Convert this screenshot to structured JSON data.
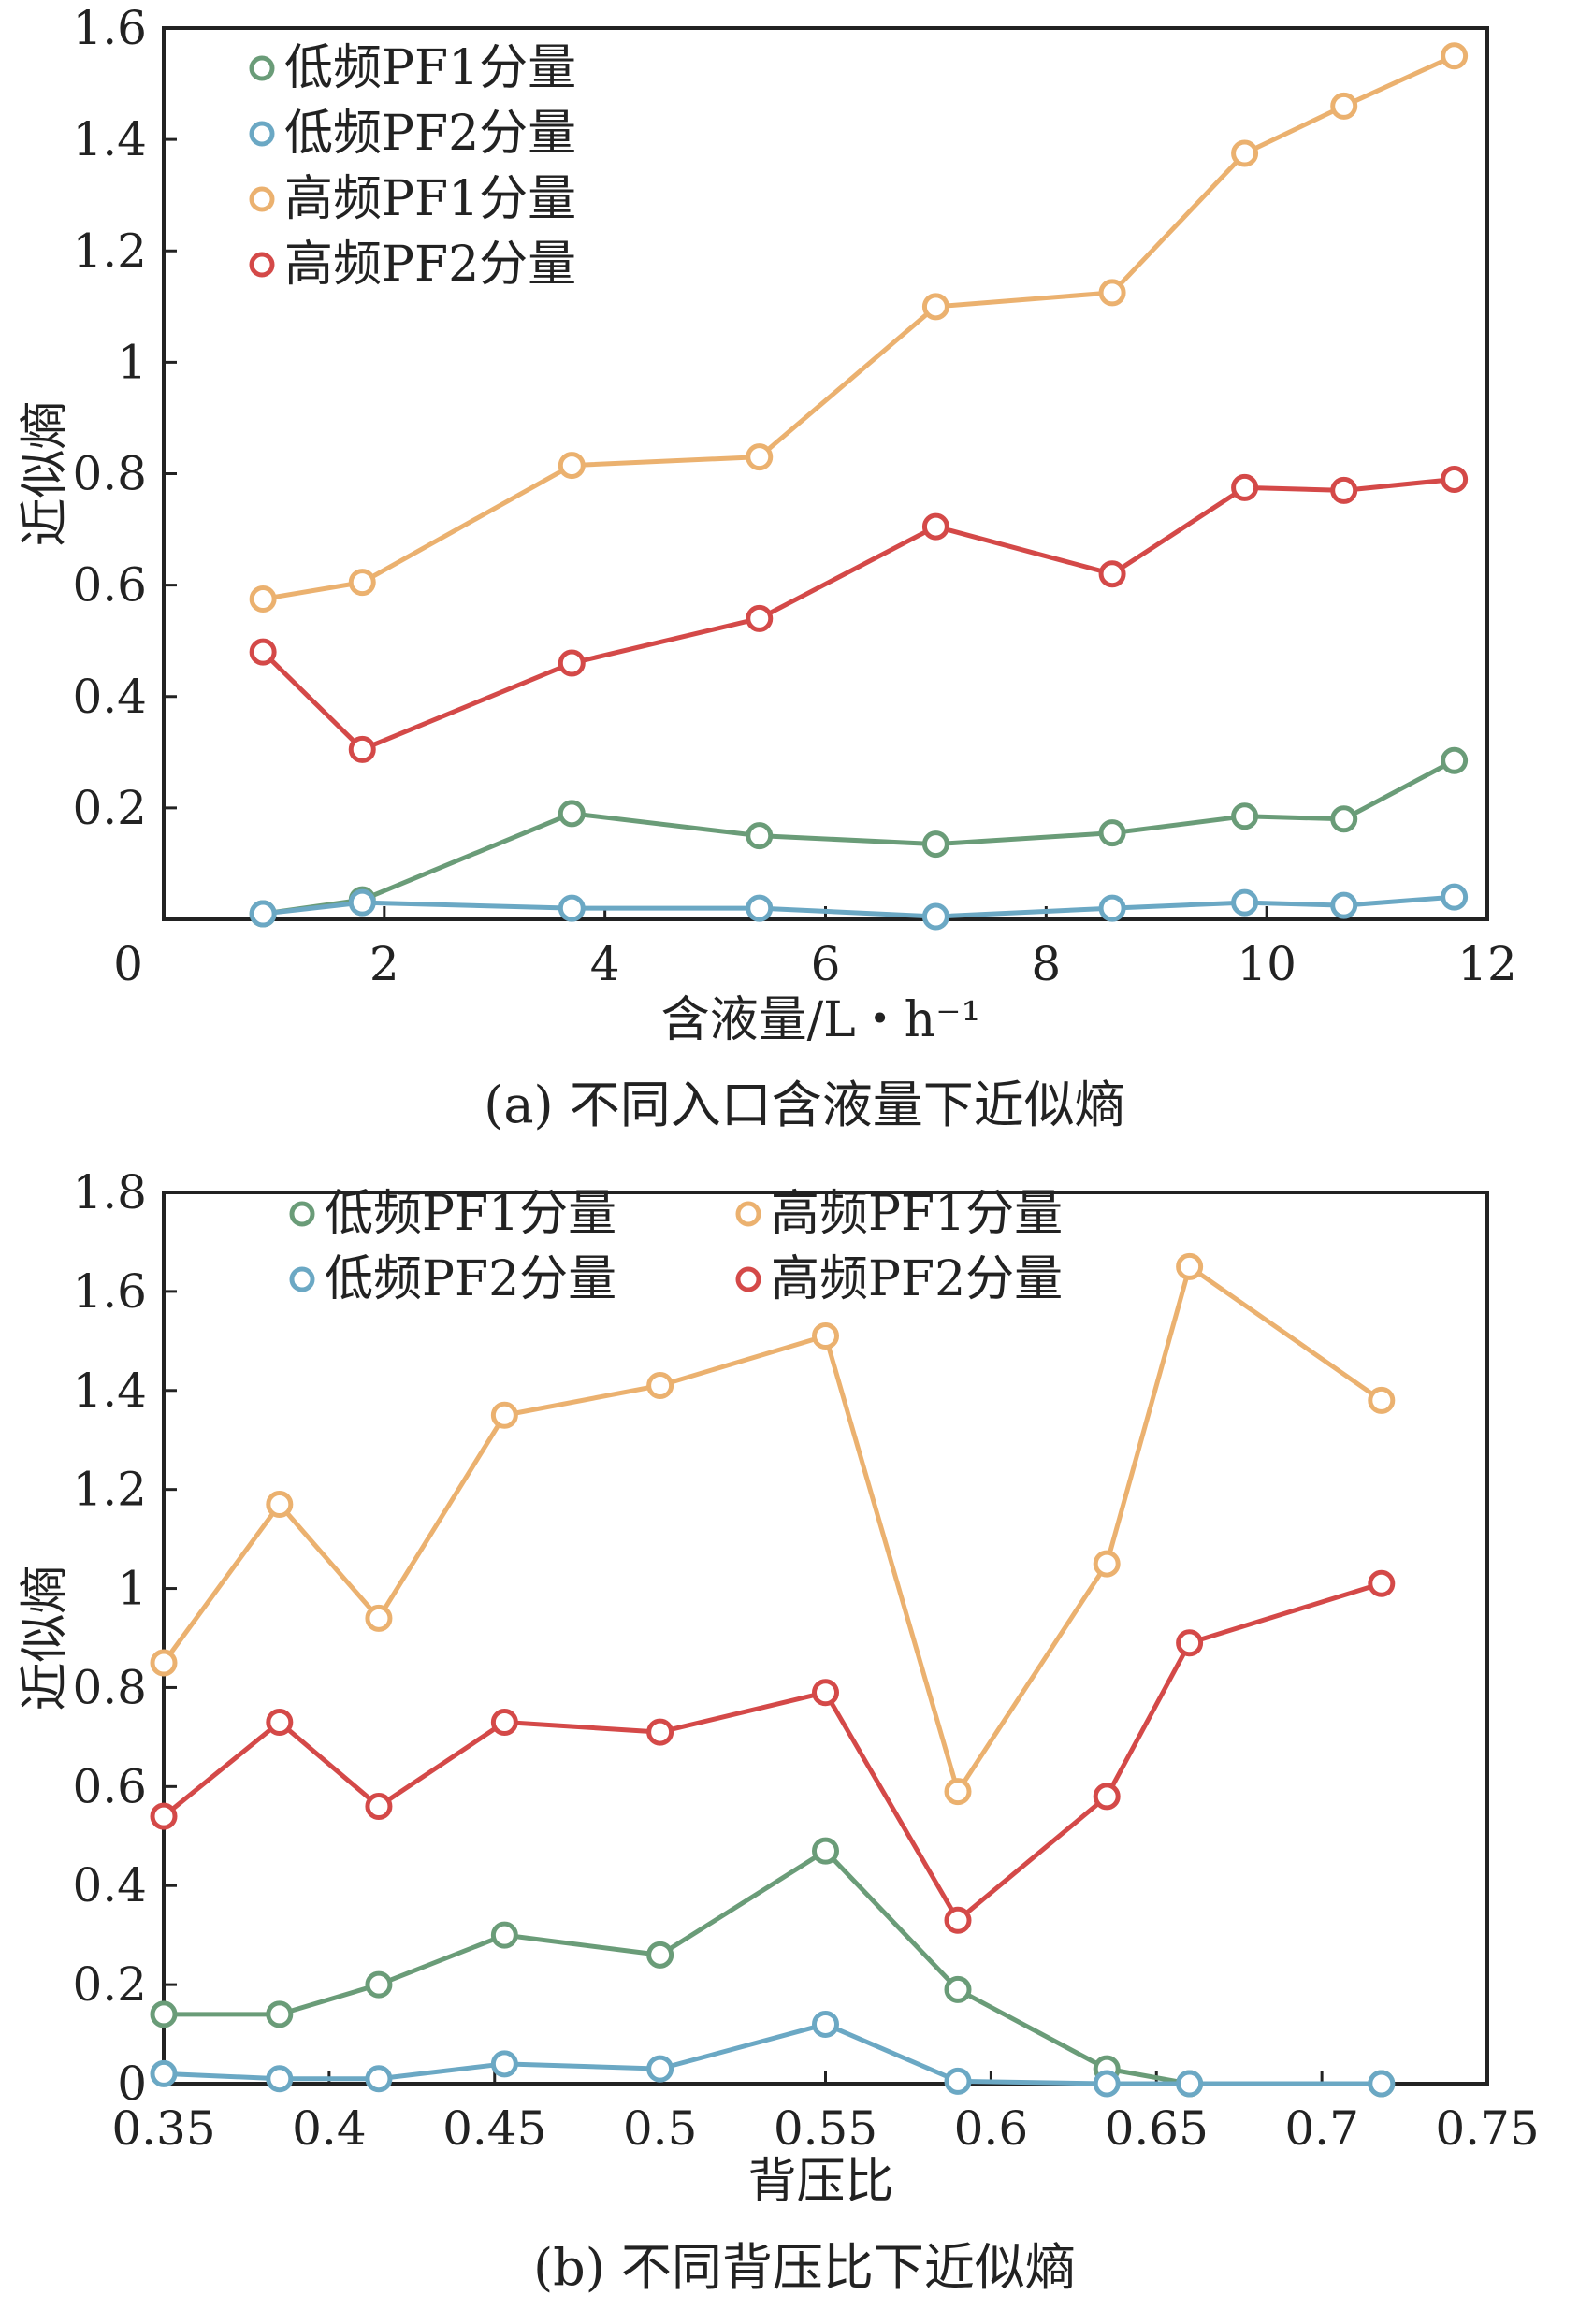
{
  "chart_data": [
    {
      "type": "line",
      "title": "",
      "caption": "(a) 不同入口含液量下近似熵",
      "xlabel": "含液量/L・h⁻¹",
      "ylabel": "近似熵",
      "xlim": [
        0,
        12
      ],
      "ylim": [
        0,
        1.6
      ],
      "x_ticks": [
        "0",
        "2",
        "4",
        "6",
        "8",
        "10",
        "12"
      ],
      "y_ticks": [
        "0.2",
        "0.4",
        "0.6",
        "0.8",
        "1",
        "1.2",
        "1.4",
        "1.6"
      ],
      "x": [
        0.9,
        1.8,
        3.7,
        5.4,
        7.0,
        8.6,
        9.8,
        10.7,
        11.7
      ],
      "series": [
        {
          "name": "低频PF1分量",
          "color": "#6a9c78",
          "values": [
            0.01,
            0.035,
            0.19,
            0.15,
            0.135,
            0.155,
            0.185,
            0.18,
            0.285
          ]
        },
        {
          "name": "低频PF2分量",
          "color": "#6ba8c4",
          "values": [
            0.01,
            0.03,
            0.02,
            0.02,
            0.005,
            0.02,
            0.03,
            0.025,
            0.04
          ]
        },
        {
          "name": "高频PF1分量",
          "color": "#ebb16f",
          "values": [
            0.575,
            0.605,
            0.815,
            0.83,
            1.1,
            1.125,
            1.375,
            1.46,
            1.55
          ]
        },
        {
          "name": "高频PF2分量",
          "color": "#d44948",
          "values": [
            0.48,
            0.305,
            0.46,
            0.54,
            0.705,
            0.62,
            0.775,
            0.77,
            0.79
          ]
        }
      ],
      "legend_location": "top-left"
    },
    {
      "type": "line",
      "title": "",
      "caption": "(b) 不同背压比下近似熵",
      "xlabel": "背压比",
      "ylabel": "近似熵",
      "xlim": [
        0.35,
        0.75
      ],
      "ylim": [
        0,
        1.8
      ],
      "x_ticks": [
        "0.35",
        "0.4",
        "0.45",
        "0.5",
        "0.55",
        "0.6",
        "0.65",
        "0.7",
        "0.75"
      ],
      "y_ticks": [
        "0",
        "0.2",
        "0.4",
        "0.6",
        "0.8",
        "1",
        "1.2",
        "1.4",
        "1.6",
        "1.8"
      ],
      "x": [
        0.35,
        0.385,
        0.415,
        0.453,
        0.5,
        0.55,
        0.59,
        0.635,
        0.66,
        0.718
      ],
      "series": [
        {
          "name": "低频PF1分量",
          "color": "#6a9c78",
          "values": [
            0.14,
            0.14,
            0.2,
            0.3,
            0.26,
            0.47,
            0.19,
            0.03,
            0.0,
            0.0
          ]
        },
        {
          "name": "低频PF2分量",
          "color": "#6ba8c4",
          "values": [
            0.02,
            0.01,
            0.01,
            0.04,
            0.03,
            0.12,
            0.005,
            0.0,
            0.0,
            0.0
          ]
        },
        {
          "name": "高频PF1分量",
          "color": "#ebb16f",
          "values": [
            0.85,
            1.17,
            0.94,
            1.35,
            1.41,
            1.51,
            0.59,
            1.05,
            1.65,
            1.38
          ]
        },
        {
          "name": "高频PF2分量",
          "color": "#d44948",
          "values": [
            0.54,
            0.73,
            0.56,
            0.73,
            0.71,
            0.79,
            0.33,
            0.58,
            0.89,
            1.01
          ]
        }
      ],
      "legend_location": "top, two columns"
    }
  ]
}
